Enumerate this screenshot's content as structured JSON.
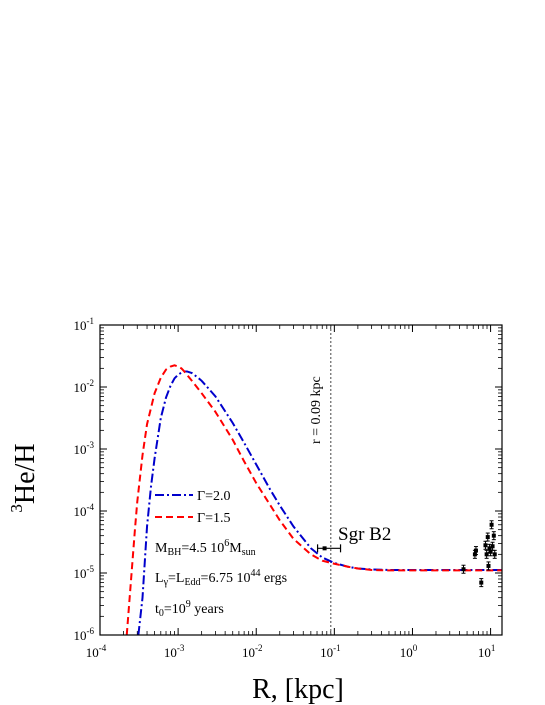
{
  "chart_data": {
    "type": "line",
    "xlabel": "R, [kpc]",
    "ylabel_sup": "3",
    "ylabel_main": "He/H",
    "x_scale": "log",
    "y_scale": "log",
    "xlim": [
      0.0001,
      14
    ],
    "ylim": [
      1e-06,
      0.1
    ],
    "x_ticks": [
      {
        "value": 0.0001,
        "base": "10",
        "exp": "-4"
      },
      {
        "value": 0.001,
        "base": "10",
        "exp": "-3"
      },
      {
        "value": 0.01,
        "base": "10",
        "exp": "-2"
      },
      {
        "value": 0.1,
        "base": "10",
        "exp": "-1"
      },
      {
        "value": 1,
        "base": "10",
        "exp": "0"
      },
      {
        "value": 10,
        "base": "10",
        "exp": "1"
      }
    ],
    "y_ticks": [
      {
        "value": 1e-06,
        "base": "10",
        "exp": "-6"
      },
      {
        "value": 1e-05,
        "base": "10",
        "exp": "-5"
      },
      {
        "value": 0.0001,
        "base": "10",
        "exp": "-4"
      },
      {
        "value": 0.001,
        "base": "10",
        "exp": "-3"
      },
      {
        "value": 0.01,
        "base": "10",
        "exp": "-2"
      },
      {
        "value": 0.1,
        "base": "10",
        "exp": "-1"
      }
    ],
    "grid": false,
    "series": [
      {
        "name": "Γ=2.0",
        "color": "#0000cc",
        "dash": "dash-dot",
        "x": [
          0.00031,
          0.00035,
          0.0004,
          0.00045,
          0.0005,
          0.0006,
          0.0007,
          0.0008,
          0.0009,
          0.001,
          0.0011,
          0.0012,
          0.0013,
          0.0015,
          0.0018,
          0.002,
          0.003,
          0.005,
          0.007,
          0.01,
          0.015,
          0.02,
          0.03,
          0.05,
          0.07,
          0.1,
          0.15,
          0.2,
          0.3,
          0.5,
          1,
          2,
          5,
          10,
          14
        ],
        "y": [
          1e-06,
          3.98e-06,
          5.62e-05,
          0.000251,
          0.000708,
          0.00316,
          0.00676,
          0.0105,
          0.0138,
          0.0158,
          0.017,
          0.0178,
          0.0178,
          0.0168,
          0.0141,
          0.0126,
          0.00708,
          0.00263,
          0.00126,
          0.000562,
          0.000224,
          0.000123,
          5.62e-05,
          2.51e-05,
          1.78e-05,
          1.45e-05,
          1.26e-05,
          1.18e-05,
          1.14e-05,
          1.12e-05,
          1.12e-05,
          1.12e-05,
          1.12e-05,
          1.12e-05,
          1.12e-05
        ]
      },
      {
        "name": "Γ=1.5",
        "color": "#ff0000",
        "dash": "dashed",
        "x": [
          0.00022,
          0.00025,
          0.00028,
          0.0003,
          0.00035,
          0.0004,
          0.0005,
          0.0006,
          0.0007,
          0.0008,
          0.0009,
          0.001,
          0.0011,
          0.0012,
          0.0015,
          0.002,
          0.003,
          0.005,
          0.007,
          0.01,
          0.015,
          0.02,
          0.03,
          0.05,
          0.07,
          0.1,
          0.15,
          0.2,
          0.3,
          0.5,
          1,
          2,
          5,
          10,
          14
        ],
        "y": [
          1e-06,
          7.94e-06,
          5.01e-05,
          0.000141,
          0.000794,
          0.00251,
          0.00794,
          0.0141,
          0.0191,
          0.0214,
          0.0224,
          0.0214,
          0.02,
          0.0178,
          0.0126,
          0.00794,
          0.00398,
          0.00141,
          0.000631,
          0.000282,
          0.000126,
          7.08e-05,
          3.55e-05,
          2e-05,
          1.58e-05,
          1.41e-05,
          1.26e-05,
          1.18e-05,
          1.12e-05,
          1.1e-05,
          1.1e-05,
          1.1e-05,
          1.1e-05,
          1.1e-05,
          1.1e-05
        ]
      }
    ],
    "vline": {
      "x": 0.09,
      "label": "r = 0.09 kpc"
    },
    "sgr_b2": {
      "label": "Sgr B2",
      "x": 0.075,
      "y": 2.5e-05,
      "xerr_low": 0.061,
      "xerr_high": 0.12
    },
    "data_points": [
      {
        "x": 4.5,
        "y": 1.15e-05
      },
      {
        "x": 6.3,
        "y": 2e-05
      },
      {
        "x": 6.5,
        "y": 2.3e-05
      },
      {
        "x": 7.6,
        "y": 7e-06
      },
      {
        "x": 8.6,
        "y": 2.8e-05
      },
      {
        "x": 8.9,
        "y": 2e-05
      },
      {
        "x": 9.2,
        "y": 3.8e-05
      },
      {
        "x": 9.4,
        "y": 1.3e-05
      },
      {
        "x": 9.7,
        "y": 2.5e-05
      },
      {
        "x": 10.0,
        "y": 2.2e-05
      },
      {
        "x": 10.3,
        "y": 6e-05
      },
      {
        "x": 10.6,
        "y": 2.7e-05
      },
      {
        "x": 11.0,
        "y": 4e-05
      },
      {
        "x": 11.3,
        "y": 2e-05
      }
    ],
    "legend": {
      "placement": "lower-left"
    },
    "annotations": {
      "mbh_prefix": "M",
      "mbh_sub": "BH",
      "mbh_mid": "=4.5 10",
      "mbh_sup": "6",
      "mbh_m": "M",
      "mbh_msub": "sun",
      "lg_prefix": "L",
      "lg_sub": "γ",
      "lg_mid": "=L",
      "lg_sub2": "Edd",
      "lg_val": "=6.75 10",
      "lg_sup": "44",
      "lg_unit": " ergs",
      "t0_prefix": "t",
      "t0_sub": "0",
      "t0_mid": "=10",
      "t0_sup": "9",
      "t0_unit": " years"
    }
  }
}
